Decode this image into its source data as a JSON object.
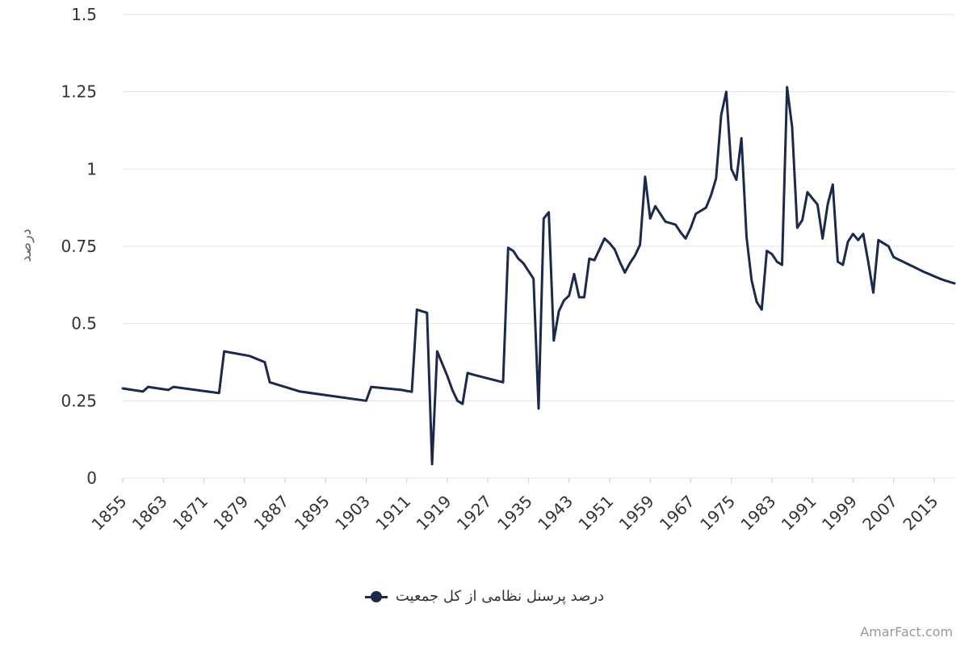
{
  "chart_data": {
    "type": "line",
    "xlabel": "",
    "ylabel": "درصد",
    "ylim": [
      0,
      1.5
    ],
    "yticks": [
      "0",
      "0.25",
      "0.5",
      "0.75",
      "1",
      "1.25",
      "1.5"
    ],
    "ytick_values": [
      0,
      0.25,
      0.5,
      0.75,
      1,
      1.25,
      1.5
    ],
    "xlim": [
      1855,
      2019
    ],
    "xticks": [
      "1855",
      "1863",
      "1871",
      "1879",
      "1887",
      "1895",
      "1903",
      "1911",
      "1919",
      "1927",
      "1935",
      "1943",
      "1951",
      "1959",
      "1967",
      "1975",
      "1983",
      "1991",
      "1999",
      "2007",
      "2015"
    ],
    "xtick_values": [
      1855,
      1863,
      1871,
      1879,
      1887,
      1895,
      1903,
      1911,
      1919,
      1927,
      1935,
      1943,
      1951,
      1959,
      1967,
      1975,
      1983,
      1991,
      1999,
      2007,
      2015
    ],
    "grid": true,
    "legend_position": "bottom",
    "series": [
      {
        "name": "درصد پرسنل نظامی از کل جمعیت",
        "color": "#1b2a4a",
        "x": [
          1855,
          1859,
          1860,
          1864,
          1865,
          1874,
          1875,
          1880,
          1883,
          1884,
          1890,
          1903,
          1904,
          1910,
          1911,
          1912,
          1913,
          1914,
          1915,
          1916,
          1917,
          1918,
          1919,
          1920,
          1921,
          1922,
          1923,
          1924,
          1930,
          1931,
          1932,
          1933,
          1934,
          1935,
          1936,
          1937,
          1938,
          1939,
          1940,
          1941,
          1942,
          1943,
          1944,
          1945,
          1946,
          1947,
          1948,
          1949,
          1950,
          1951,
          1952,
          1953,
          1954,
          1955,
          1956,
          1957,
          1958,
          1959,
          1960,
          1961,
          1962,
          1963,
          1964,
          1965,
          1966,
          1967,
          1968,
          1969,
          1970,
          1971,
          1972,
          1973,
          1974,
          1975,
          1976,
          1977,
          1978,
          1979,
          1980,
          1981,
          1982,
          1983,
          1984,
          1985,
          1986,
          1987,
          1988,
          1989,
          1990,
          1991,
          1992,
          1993,
          1994,
          1995,
          1996,
          1997,
          1998,
          1999,
          2000,
          2001,
          2002,
          2003,
          2004,
          2005,
          2006,
          2007,
          2008,
          2009,
          2010,
          2011,
          2012,
          2013,
          2014,
          2015,
          2016,
          2017,
          2018,
          2019
        ],
        "values": [
          0.29,
          0.28,
          0.295,
          0.285,
          0.295,
          0.275,
          0.41,
          0.395,
          0.375,
          0.31,
          0.28,
          0.25,
          0.295,
          0.285,
          0.282,
          0.279,
          0.545,
          0.54,
          0.535,
          0.045,
          0.41,
          0.37,
          0.33,
          0.285,
          0.25,
          0.24,
          0.34,
          0.335,
          0.31,
          0.745,
          0.735,
          0.71,
          0.695,
          0.67,
          0.645,
          0.225,
          0.84,
          0.86,
          0.445,
          0.54,
          0.575,
          0.59,
          0.66,
          0.585,
          0.585,
          0.71,
          0.705,
          0.74,
          0.775,
          0.76,
          0.74,
          0.7,
          0.665,
          0.695,
          0.72,
          0.755,
          0.975,
          0.84,
          0.88,
          0.855,
          0.83,
          0.825,
          0.82,
          0.795,
          0.775,
          0.81,
          0.855,
          0.865,
          0.875,
          0.915,
          0.97,
          1.175,
          1.25,
          1.0,
          0.965,
          1.1,
          0.78,
          0.64,
          0.57,
          0.545,
          0.735,
          0.725,
          0.7,
          0.69,
          1.265,
          1.135,
          0.81,
          0.835,
          0.925,
          0.905,
          0.885,
          0.775,
          0.885,
          0.95,
          0.7,
          0.69,
          0.765,
          0.79,
          0.77,
          0.79,
          0.7,
          0.6,
          0.77,
          0.76,
          0.75,
          0.715,
          0.707,
          0.699,
          0.691,
          0.683,
          0.675,
          0.667,
          0.66,
          0.653,
          0.646,
          0.64,
          0.635,
          0.63
        ]
      }
    ]
  },
  "legend": {
    "label": "درصد پرسنل نظامی از کل جمعیت"
  },
  "watermark": "AmarFact.com"
}
